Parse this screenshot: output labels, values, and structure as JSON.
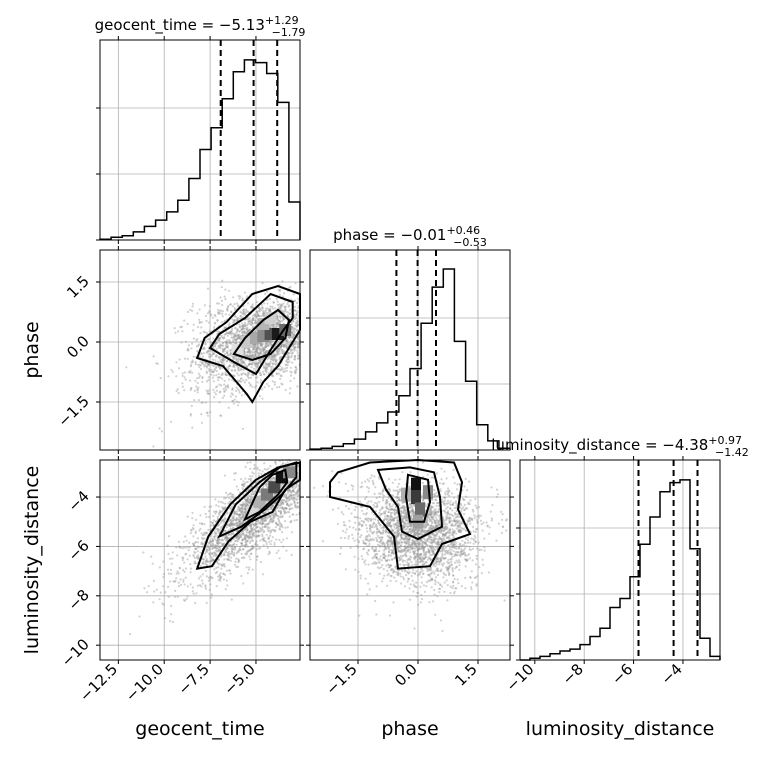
{
  "chart_data": {
    "type": "corner",
    "params": [
      "geocent_time",
      "phase",
      "luminosity_distance"
    ],
    "axis_labels": {
      "geocent_time": "geocent_time",
      "phase": "phase",
      "luminosity_distance": "luminosity_distance"
    },
    "panel_titles": {
      "geocent_time": {
        "base": "geocent_time = −5.13",
        "sup": "+1.29",
        "sub": "−1.79"
      },
      "phase": {
        "base": "phase = −0.01",
        "sup": "+0.46",
        "sub": "−0.53"
      },
      "luminosity_distance": {
        "base": "luminosity_distance = −4.38",
        "sup": "+0.97",
        "sub": "−1.42"
      }
    },
    "ranges": {
      "geocent_time": [
        -13.5,
        -2.6
      ],
      "phase": [
        -2.7,
        2.3
      ],
      "luminosity_distance": [
        -10.6,
        -2.5
      ]
    },
    "ticks": {
      "geocent_time": {
        "values": [
          -12.5,
          -10.0,
          -7.5,
          -5.0
        ],
        "labels": [
          "−12.5",
          "−10.0",
          "−7.5",
          "−5.0"
        ]
      },
      "phase": {
        "values": [
          -1.5,
          0.0,
          1.5
        ],
        "labels": [
          "−1.5",
          "0.0",
          "1.5"
        ]
      },
      "luminosity_distance": {
        "values": [
          -10,
          -8,
          -6,
          -4
        ],
        "labels": [
          "−10",
          "−8",
          "−6",
          "−4"
        ]
      }
    },
    "quantiles": {
      "geocent_time": [
        -6.92,
        -5.13,
        -3.84
      ],
      "phase": [
        -0.54,
        -0.01,
        0.45
      ],
      "luminosity_distance": [
        -5.8,
        -4.38,
        -3.41
      ]
    },
    "histograms": {
      "geocent_time": [
        0.004,
        0.015,
        0.024,
        0.045,
        0.075,
        0.11,
        0.155,
        0.22,
        0.34,
        0.5,
        0.62,
        0.78,
        0.93,
        0.995,
        0.98,
        0.92,
        0.76,
        0.21
      ],
      "phase": [
        0.005,
        0.01,
        0.02,
        0.035,
        0.06,
        0.1,
        0.15,
        0.21,
        0.3,
        0.45,
        0.7,
        0.9,
        1.0,
        0.6,
        0.38,
        0.14,
        0.05,
        0.01
      ],
      "luminosity_distance": [
        0.0,
        0.01,
        0.02,
        0.035,
        0.05,
        0.06,
        0.085,
        0.13,
        0.175,
        0.29,
        0.34,
        0.46,
        0.64,
        0.79,
        0.93,
        0.98,
        0.995,
        0.615,
        0.12,
        0.02
      ]
    },
    "grid": true
  }
}
